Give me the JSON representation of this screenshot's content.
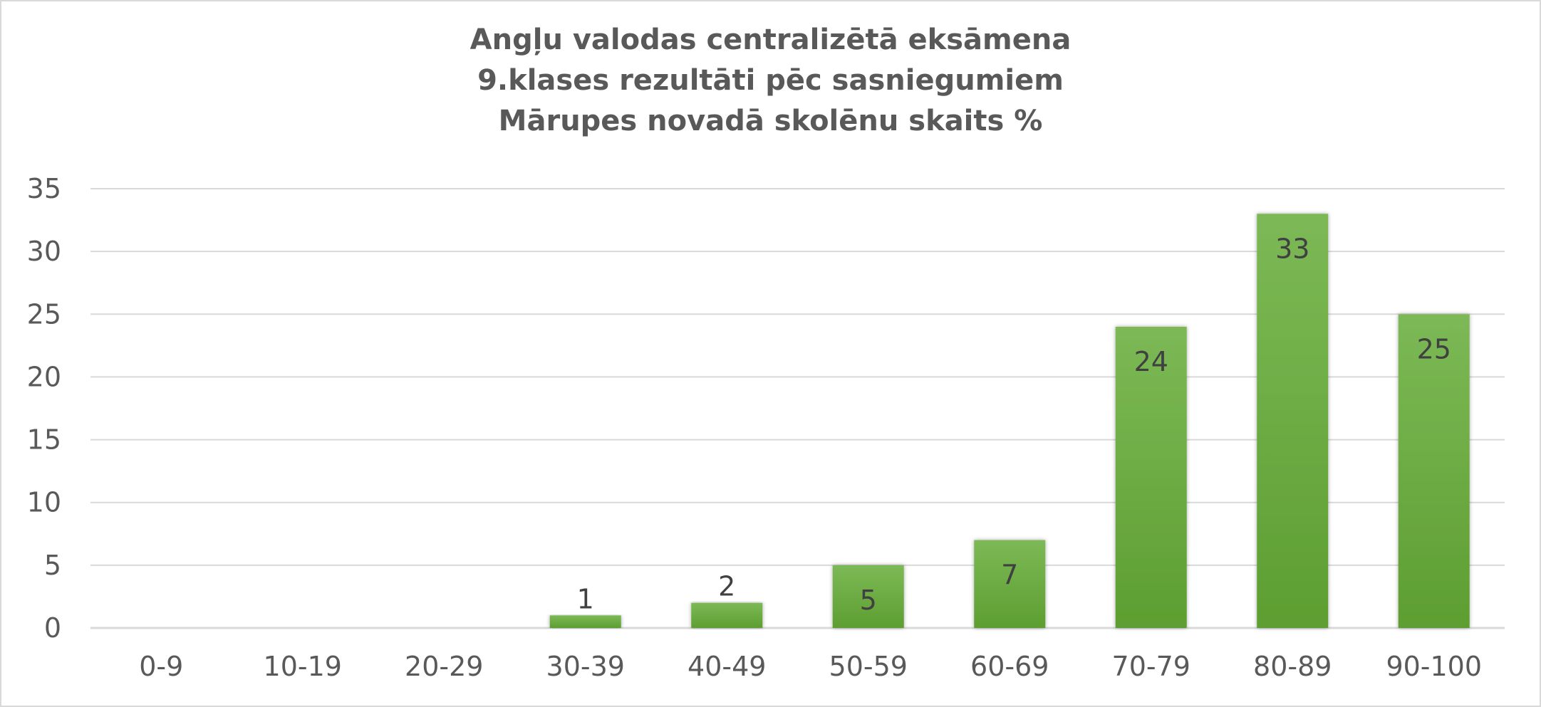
{
  "chart_data": {
    "type": "bar",
    "title": [
      "Angļu valodas centralizētā eksāmena",
      "9.klases rezultāti pēc sasniegumiem",
      "Mārupes novadā skolēnu skaits %"
    ],
    "categories": [
      "0-9",
      "10-19",
      "20-29",
      "30-39",
      "40-49",
      "50-59",
      "60-69",
      "70-79",
      "80-89",
      "90-100"
    ],
    "values": [
      0,
      0,
      0,
      1,
      2,
      5,
      7,
      24,
      33,
      25
    ],
    "data_labels": [
      null,
      null,
      null,
      "1",
      "2",
      "5",
      "7",
      "24",
      "33",
      "25"
    ],
    "ylim": [
      0,
      35
    ],
    "yticks": [
      "0",
      "5",
      "10",
      "15",
      "20",
      "25",
      "30",
      "35"
    ],
    "grid": true,
    "legend": "none",
    "colors": {
      "bar_top": "#7cb956",
      "bar_bottom": "#5d9e31",
      "grid": "#d9d9d9",
      "axis": "#d9d9d9",
      "text": "#595959"
    }
  }
}
